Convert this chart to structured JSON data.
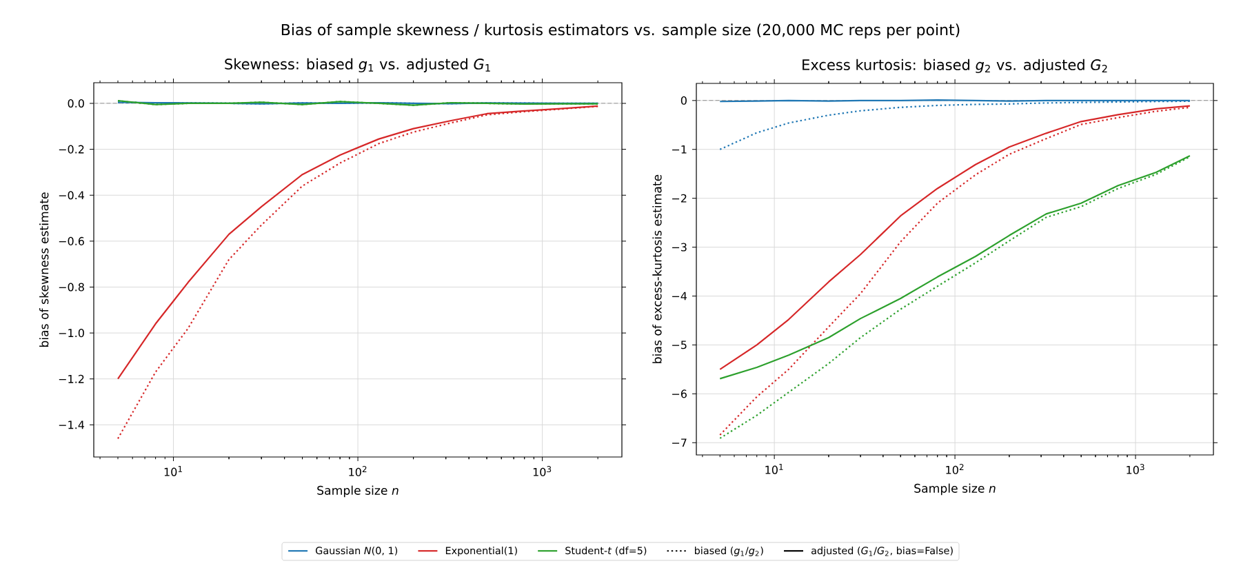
{
  "chart_data": [
    {
      "type": "line",
      "title": "Skewness: biased *g*$_{1}$ vs. adjusted *G*$_{1}$",
      "xlabel": "Sample size *n*",
      "ylabel": "bias of skewness estimate",
      "annotations": [
        "Bias of sample skewness / kurtosis estimators vs. sample size (20,000 MC reps per point)"
      ],
      "log": "x",
      "grid": true,
      "legend": "bottom",
      "xlim": [
        3.7,
        2700
      ],
      "ylim": [
        -1.54,
        0.09
      ],
      "xticks": [
        {
          "value": 10,
          "label": "10$^{1}$"
        },
        {
          "value": 100,
          "label": "10$^{2}$"
        },
        {
          "value": 1000,
          "label": "10$^{3}$"
        }
      ],
      "yticks": [
        {
          "value": -1.4,
          "label": "−1.4"
        },
        {
          "value": -1.2,
          "label": "−1.2"
        },
        {
          "value": -1.0,
          "label": "−1.0"
        },
        {
          "value": -0.8,
          "label": "−0.8"
        },
        {
          "value": -0.6,
          "label": "−0.6"
        },
        {
          "value": -0.4,
          "label": "−0.4"
        },
        {
          "value": -0.2,
          "label": "−0.2"
        },
        {
          "value": 0,
          "label": "0.0"
        }
      ],
      "ref_lines": [
        {
          "axis": "y",
          "value": 0,
          "color": "#808080",
          "line_style": "dashed"
        }
      ],
      "x": [
        5,
        8,
        12,
        20,
        30,
        50,
        80,
        130,
        200,
        320,
        500,
        800,
        1300,
        2000
      ],
      "series": [
        {
          "name": "Gaussian *N*(0, 1)",
          "color": "#1f77b4",
          "line_style": "solid",
          "values": [
            0.005,
            0.003,
            0.002,
            0.0,
            -0.002,
            0.002,
            0.0,
            0.003,
            0.0,
            -0.001,
            0.002,
            0.001,
            0.0,
            0.0
          ]
        },
        {
          "color": "#1f77b4",
          "line_style": "dotted",
          "values": [
            0.004,
            0.002,
            0.002,
            0.0,
            -0.002,
            0.002,
            0.0,
            0.003,
            0.0,
            -0.001,
            0.002,
            0.001,
            0.0,
            0.0
          ]
        },
        {
          "name": "Exponential(1)",
          "color": "#d62728",
          "line_style": "solid",
          "values": [
            -1.2,
            -0.96,
            -0.78,
            -0.57,
            -0.45,
            -0.31,
            -0.225,
            -0.155,
            -0.11,
            -0.075,
            -0.045,
            -0.033,
            -0.022,
            -0.012
          ]
        },
        {
          "color": "#d62728",
          "line_style": "dotted",
          "values": [
            -1.46,
            -1.17,
            -0.98,
            -0.68,
            -0.53,
            -0.36,
            -0.26,
            -0.175,
            -0.125,
            -0.085,
            -0.05,
            -0.036,
            -0.024,
            -0.013
          ]
        },
        {
          "name": "Student-*t* (df=5)",
          "color": "#2ca02c",
          "line_style": "solid",
          "values": [
            0.012,
            -0.005,
            0.0,
            0.0,
            0.005,
            -0.005,
            0.008,
            0.0,
            -0.008,
            0.003,
            0.0,
            -0.003,
            -0.002,
            -0.002
          ]
        },
        {
          "color": "#2ca02c",
          "line_style": "dotted",
          "values": [
            0.011,
            -0.005,
            0.0,
            0.0,
            0.005,
            -0.005,
            0.008,
            0.0,
            -0.008,
            0.003,
            0.0,
            -0.003,
            -0.002,
            -0.002
          ]
        },
        {
          "name": "biased (*g*$_{1}$/*g*$_{2}$)",
          "color": "#000000",
          "line_style": "dotted",
          "values": [
            null,
            null,
            null,
            null,
            null,
            null,
            null,
            null,
            null,
            null,
            null,
            null,
            null,
            null
          ]
        },
        {
          "name": "adjusted (*G*$_{1}$/*G*$_{2}$, bias=False)",
          "color": "#000000",
          "line_style": "solid",
          "values": [
            null,
            null,
            null,
            null,
            null,
            null,
            null,
            null,
            null,
            null,
            null,
            null,
            null,
            null
          ]
        }
      ]
    },
    {
      "type": "line",
      "title": "Excess kurtosis: biased *g*$_{2}$ vs. adjusted *G*$_{2}$",
      "xlabel": "Sample size *n*",
      "ylabel": "bias of excess-kurtosis estimate",
      "log": "x",
      "grid": true,
      "xlim": [
        3.7,
        2700
      ],
      "ylim": [
        -7.25,
        0.35
      ],
      "xticks": [
        {
          "value": 10,
          "label": "10$^{1}$"
        },
        {
          "value": 100,
          "label": "10$^{2}$"
        },
        {
          "value": 1000,
          "label": "10$^{3}$"
        }
      ],
      "yticks": [
        {
          "value": -7,
          "label": "−7"
        },
        {
          "value": -6,
          "label": "−6"
        },
        {
          "value": -5,
          "label": "−5"
        },
        {
          "value": -4,
          "label": "−4"
        },
        {
          "value": -3,
          "label": "−3"
        },
        {
          "value": -2,
          "label": "−2"
        },
        {
          "value": -1,
          "label": "−1"
        },
        {
          "value": 0,
          "label": "0"
        }
      ],
      "ref_lines": [
        {
          "axis": "y",
          "value": 0,
          "color": "#808080",
          "line_style": "dashed"
        }
      ],
      "x": [
        5,
        8,
        12,
        20,
        30,
        50,
        80,
        130,
        200,
        320,
        500,
        800,
        1300,
        2000
      ],
      "series": [
        {
          "color": "#1f77b4",
          "line_style": "solid",
          "values": [
            -0.02,
            -0.01,
            0.0,
            -0.01,
            0.0,
            0.0,
            0.01,
            0.0,
            -0.01,
            0.0,
            0.0,
            0.0,
            0.0,
            0.0
          ]
        },
        {
          "color": "#1f77b4",
          "line_style": "dotted",
          "values": [
            -1.0,
            -0.66,
            -0.46,
            -0.3,
            -0.21,
            -0.14,
            -0.1,
            -0.08,
            -0.07,
            -0.05,
            -0.04,
            -0.03,
            -0.02,
            -0.015
          ]
        },
        {
          "color": "#d62728",
          "line_style": "solid",
          "values": [
            -5.5,
            -5.0,
            -4.48,
            -3.71,
            -3.15,
            -2.36,
            -1.8,
            -1.31,
            -0.95,
            -0.67,
            -0.43,
            -0.29,
            -0.17,
            -0.11
          ]
        },
        {
          "color": "#d62728",
          "line_style": "dotted",
          "values": [
            -6.84,
            -6.06,
            -5.5,
            -4.63,
            -3.95,
            -2.89,
            -2.1,
            -1.52,
            -1.1,
            -0.78,
            -0.49,
            -0.35,
            -0.22,
            -0.14
          ]
        },
        {
          "color": "#2ca02c",
          "line_style": "solid",
          "values": [
            -5.69,
            -5.46,
            -5.21,
            -4.85,
            -4.46,
            -4.05,
            -3.61,
            -3.19,
            -2.76,
            -2.32,
            -2.1,
            -1.74,
            -1.47,
            -1.13
          ]
        },
        {
          "color": "#2ca02c",
          "line_style": "dotted",
          "values": [
            -6.91,
            -6.44,
            -5.97,
            -5.38,
            -4.85,
            -4.27,
            -3.8,
            -3.32,
            -2.87,
            -2.39,
            -2.17,
            -1.8,
            -1.51,
            -1.15
          ]
        }
      ]
    }
  ]
}
